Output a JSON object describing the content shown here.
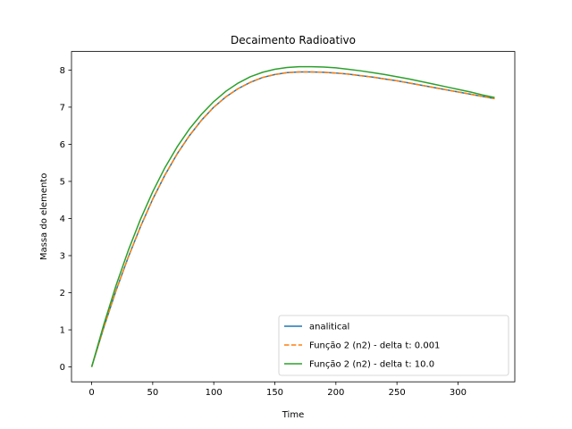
{
  "chart_data": {
    "type": "line",
    "title": "Decaimento Radioativo",
    "xlabel": "Time",
    "ylabel": "Massa do elemento",
    "xlim": [
      -16.5,
      346.5
    ],
    "ylim": [
      -0.4,
      8.5
    ],
    "xticks": [
      0,
      50,
      100,
      150,
      200,
      250,
      300
    ],
    "yticks": [
      0,
      1,
      2,
      3,
      4,
      5,
      6,
      7,
      8
    ],
    "grid": false,
    "legend_position": "lower-right",
    "series": [
      {
        "name": "analitical",
        "color": "#1f77b4",
        "dash": "solid",
        "x": [
          0,
          10,
          20,
          30,
          40,
          50,
          60,
          70,
          80,
          90,
          100,
          110,
          120,
          130,
          140,
          150,
          160,
          170,
          180,
          190,
          200,
          210,
          220,
          230,
          240,
          250,
          260,
          270,
          280,
          290,
          300,
          310,
          320,
          330
        ],
        "y": [
          0.0,
          1.07,
          2.06,
          2.96,
          3.78,
          4.52,
          5.17,
          5.74,
          6.23,
          6.65,
          7.0,
          7.28,
          7.5,
          7.67,
          7.8,
          7.88,
          7.93,
          7.95,
          7.95,
          7.94,
          7.92,
          7.89,
          7.85,
          7.81,
          7.76,
          7.71,
          7.65,
          7.59,
          7.53,
          7.47,
          7.41,
          7.35,
          7.29,
          7.23
        ]
      },
      {
        "name": "Função 2 (n2) - delta t: 0.001",
        "color": "#ff7f0e",
        "dash": "dashed",
        "x": [
          0,
          10,
          20,
          30,
          40,
          50,
          60,
          70,
          80,
          90,
          100,
          110,
          120,
          130,
          140,
          150,
          160,
          170,
          180,
          190,
          200,
          210,
          220,
          230,
          240,
          250,
          260,
          270,
          280,
          290,
          300,
          310,
          320,
          330
        ],
        "y": [
          0.0,
          1.07,
          2.06,
          2.96,
          3.78,
          4.52,
          5.17,
          5.74,
          6.23,
          6.65,
          7.0,
          7.28,
          7.5,
          7.67,
          7.8,
          7.88,
          7.93,
          7.95,
          7.95,
          7.94,
          7.92,
          7.89,
          7.85,
          7.81,
          7.76,
          7.71,
          7.65,
          7.59,
          7.53,
          7.47,
          7.41,
          7.35,
          7.29,
          7.23
        ]
      },
      {
        "name": "Função 2 (n2) - delta t: 10.0",
        "color": "#2ca02c",
        "dash": "solid",
        "x": [
          0,
          10,
          20,
          30,
          40,
          50,
          60,
          70,
          80,
          90,
          100,
          110,
          120,
          130,
          140,
          150,
          160,
          170,
          180,
          190,
          200,
          210,
          220,
          230,
          240,
          250,
          260,
          270,
          280,
          290,
          300,
          310,
          320,
          330
        ],
        "y": [
          0.0,
          1.15,
          2.2,
          3.14,
          3.98,
          4.72,
          5.37,
          5.93,
          6.41,
          6.81,
          7.15,
          7.43,
          7.65,
          7.82,
          7.94,
          8.02,
          8.07,
          8.09,
          8.09,
          8.08,
          8.06,
          8.02,
          7.98,
          7.93,
          7.88,
          7.82,
          7.76,
          7.69,
          7.62,
          7.55,
          7.48,
          7.41,
          7.33,
          7.26
        ]
      }
    ]
  }
}
